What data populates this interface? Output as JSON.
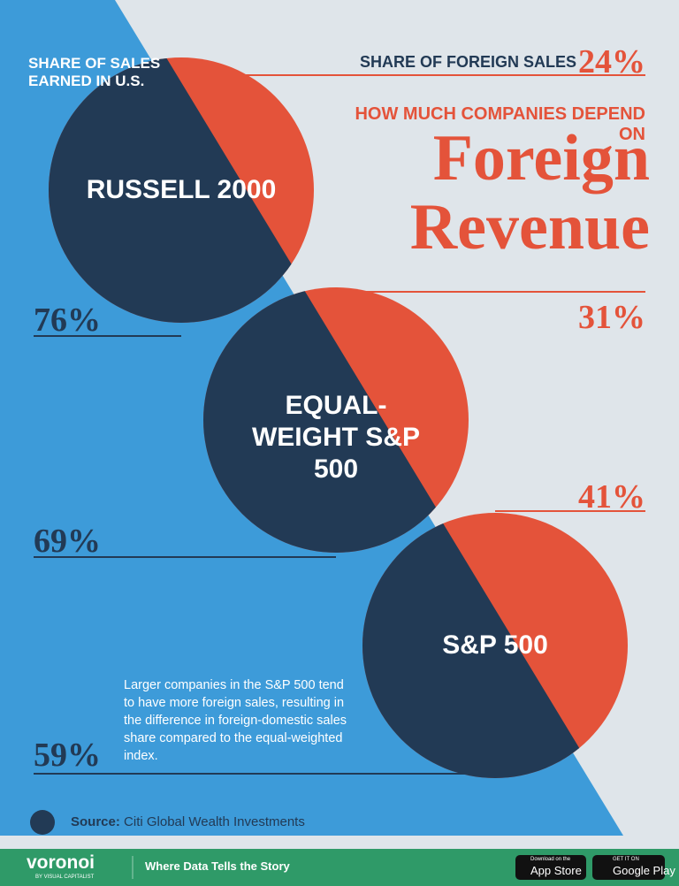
{
  "chart_data": {
    "type": "split-circle",
    "kicker": "HOW MUCH COMPANIES DEPEND ON",
    "title": "Foreign Revenue",
    "categories": [
      "RUSSELL 2000",
      "EQUAL-WEIGHT S&P 500",
      "S&P 500"
    ],
    "series": [
      {
        "name": "SHARE OF SALES EARNED IN U.S.",
        "color": "#223a55",
        "values": [
          76,
          69,
          59
        ],
        "value_labels": [
          "76%",
          "69%",
          "59%"
        ]
      },
      {
        "name": "SHARE OF FOREIGN SALES",
        "color": "#e4533a",
        "values": [
          24,
          31,
          41
        ],
        "value_labels": [
          "24%",
          "31%",
          "41%"
        ]
      }
    ],
    "annotation": "Larger companies in the S&P 500 tend to have more foreign sales, resulting in the difference in foreign-domestic sales share compared to the equal-weighted index.",
    "source_label": "Source:",
    "source": "Citi Global Wealth Investments"
  },
  "footer": {
    "brand": "voronoi",
    "brand_sub": "BY VISUAL CAPITALIST",
    "tagline": "Where Data Tells the Story",
    "badges": [
      {
        "small": "Download on the",
        "big": "App Store"
      },
      {
        "small": "GET IT ON",
        "big": "Google Play"
      }
    ]
  }
}
